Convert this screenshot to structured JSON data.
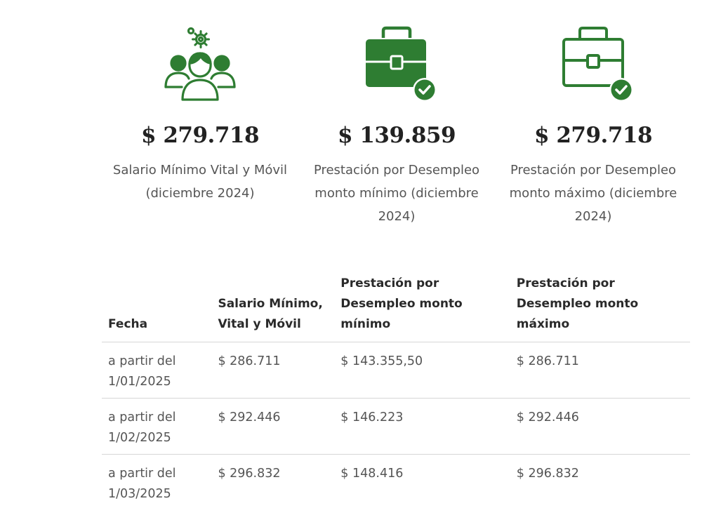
{
  "colors": {
    "accent": "#2e7d32",
    "text": "#555555",
    "heading": "#222222"
  },
  "cards": [
    {
      "icon": "people-gear-icon",
      "amount": "$ 279.718",
      "description": "Salario Mínimo Vital y Móvil (diciembre 2024)"
    },
    {
      "icon": "briefcase-check-filled-icon",
      "amount": "$ 139.859",
      "description": "Prestación por Desempleo monto mínimo (diciembre 2024)"
    },
    {
      "icon": "briefcase-check-outline-icon",
      "amount": "$ 279.718",
      "description": "Prestación por Desempleo monto máximo (diciembre 2024)"
    }
  ],
  "table": {
    "headers": [
      "Fecha",
      "Salario Mínimo, Vital y Móvil",
      "Prestación por Desempleo monto mínimo",
      "Prestación por Desempleo monto máximo"
    ],
    "rows": [
      [
        "a partir del 1/01/2025",
        "$ 286.711",
        "$ 143.355,50",
        "$ 286.711"
      ],
      [
        "a partir del 1/02/2025",
        "$ 292.446",
        "$ 146.223",
        "$ 292.446"
      ],
      [
        "a partir del 1/03/2025",
        "$ 296.832",
        "$ 148.416",
        "$ 296.832"
      ]
    ]
  }
}
